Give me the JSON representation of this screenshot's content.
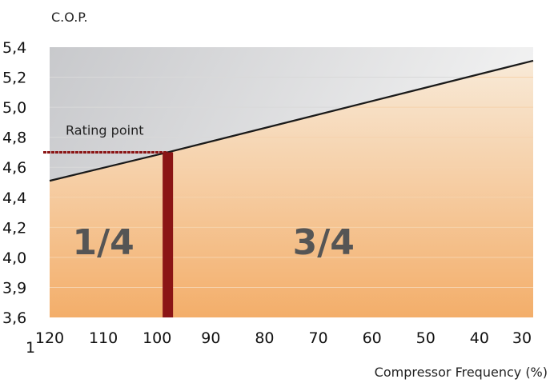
{
  "chart_data": {
    "type": "area",
    "title": "",
    "ylabel": "C.O.P.",
    "xlabel": "Compressor Frequency (%)",
    "x_ticks": [
      "120",
      "110",
      "100",
      "90",
      "80",
      "70",
      "60",
      "50",
      "40",
      "30"
    ],
    "y_ticks": [
      "5,4",
      "5,2",
      "5,0",
      "4,8",
      "4,6",
      "4,4",
      "4,2",
      "4,0",
      "3,9",
      "3,6"
    ],
    "corner_label": "1",
    "series": [
      {
        "x": [
          120,
          98,
          30
        ],
        "y": [
          4.51,
          4.7,
          5.31
        ]
      }
    ],
    "rating_point": {
      "label": "Rating point",
      "x": 98,
      "y": 4.7
    },
    "regions": [
      {
        "label": "1/4",
        "x": 110
      },
      {
        "label": "3/4",
        "x": 69
      }
    ],
    "colors": {
      "fill_top": "#f8ead8",
      "fill_bottom": "#f3ae6a",
      "bg_top": "#c8c9cc",
      "bg_bottom": "#f4f4f4",
      "line": "#1a1a1a",
      "marker": "#8b1515"
    },
    "grid": true
  }
}
